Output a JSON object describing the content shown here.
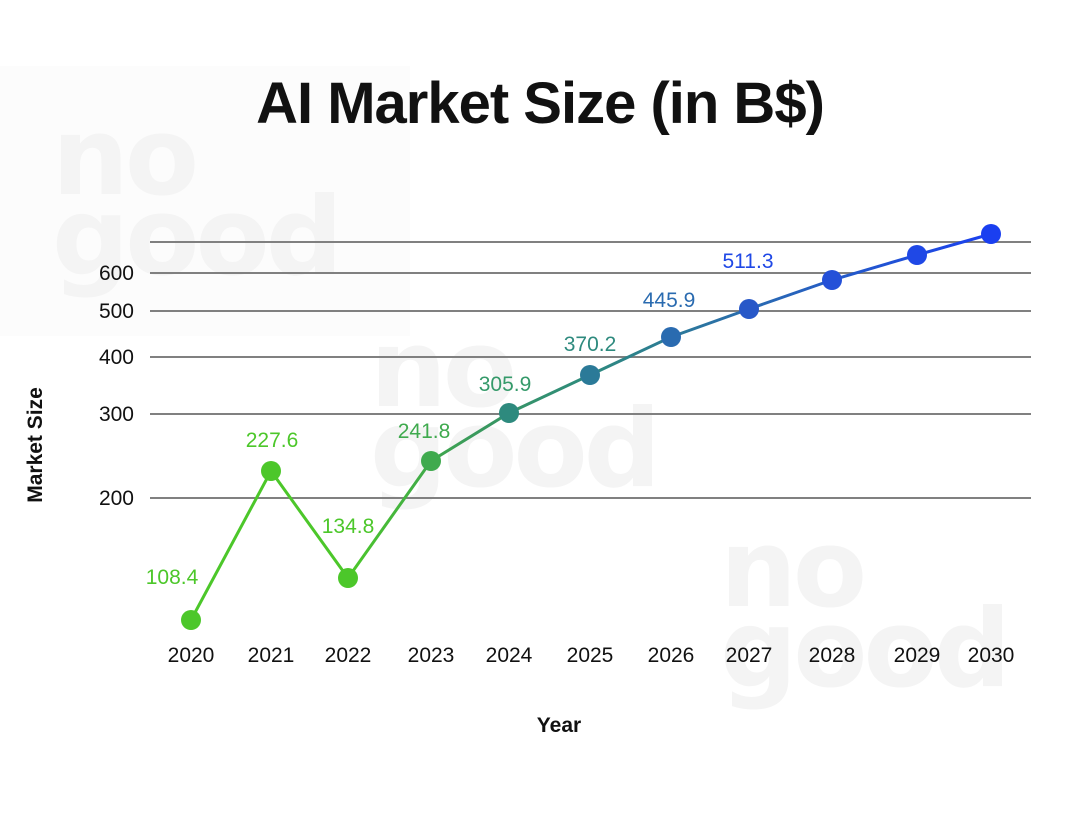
{
  "watermarks": [
    {
      "line1": "no",
      "line2": "good"
    },
    {
      "line1": "no",
      "line2": "good"
    },
    {
      "line1": "no",
      "line2": "good"
    }
  ],
  "colors": {
    "green": "#4cc72a",
    "teal": "#2e8a7e",
    "steel_blue": "#2a6bb0",
    "blue": "#1a3ff0",
    "gridline": "#808080",
    "text": "#111111"
  },
  "chart_data": {
    "type": "line",
    "title": "AI Market Size (in B$)",
    "xlabel": "Year",
    "ylabel": "Market Size",
    "scale": "log",
    "categories": [
      "2020",
      "2021",
      "2022",
      "2023",
      "2024",
      "2025",
      "2026",
      "2027",
      "2028",
      "2029",
      "2030"
    ],
    "series": [
      {
        "name": "AI Market Size",
        "values": [
          108.4,
          227.6,
          134.8,
          241.8,
          305.9,
          370.2,
          445.9,
          511.3,
          600,
          680,
          780
        ],
        "data_labels": [
          "108.4",
          "227.6",
          "134.8",
          "241.8",
          "305.9",
          "370.2",
          "445.9",
          "511.3",
          "",
          "",
          ""
        ]
      }
    ],
    "yticks": [
      "200",
      "300",
      "400",
      "500",
      "600"
    ],
    "grid": true,
    "legend": "none"
  }
}
